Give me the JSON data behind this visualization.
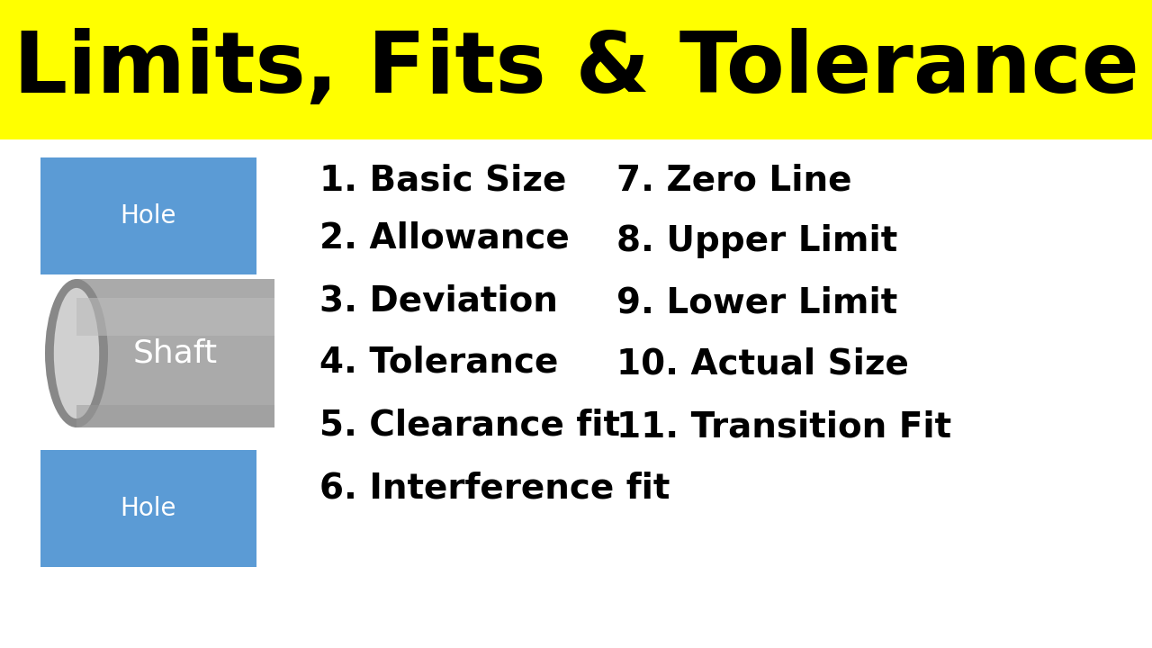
{
  "title": "Limits, Fits & Tolerance",
  "title_bg_color": "#FFFF00",
  "title_fontsize": 68,
  "bg_color": "#FFFFFF",
  "hole_color": "#5B9BD5",
  "hole_label": "Hole",
  "shaft_color_main": "#AAAAAA",
  "shaft_color_dark": "#888888",
  "shaft_color_light": "#D0D0D0",
  "shaft_label": "Shaft",
  "left_items": [
    "1. Basic Size",
    "2. Allowance",
    "3. Deviation",
    "4. Tolerance",
    "5. Clearance fit",
    "6. Interference fit"
  ],
  "right_items": [
    "7. Zero Line",
    "8. Upper Limit",
    "9. Lower Limit",
    "10. Actual Size",
    "11. Transition Fit"
  ],
  "list_fontsize": 28,
  "list_fontweight": "bold",
  "hole_label_fontsize": 20,
  "shaft_label_fontsize": 26
}
